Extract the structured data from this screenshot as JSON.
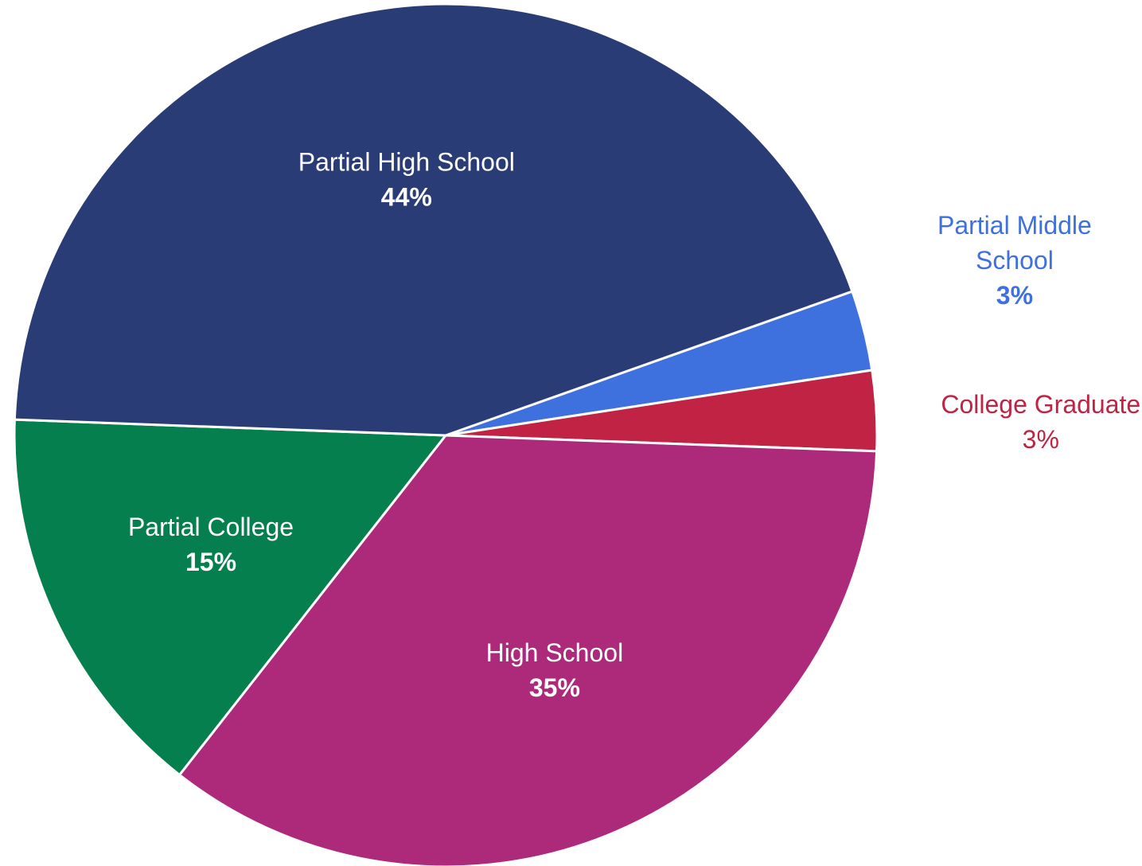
{
  "chart_data": {
    "type": "pie",
    "title": "",
    "slices": [
      {
        "name": "Partial Middle School",
        "label_lines": [
          "Partial Middle",
          "School"
        ],
        "value_label": "3%",
        "value": 3,
        "color": "#3E70DE",
        "label_color": "#3E70DE",
        "pct_bold": true
      },
      {
        "name": "College Graduate",
        "label_lines": [
          "College Graduate"
        ],
        "value_label": "3%",
        "value": 3,
        "color": "#C02343",
        "label_color": "#C02343",
        "pct_bold": false
      },
      {
        "name": "High School",
        "label_lines": [
          "High School"
        ],
        "value_label": "35%",
        "value": 35,
        "color": "#AD2A7A",
        "label_color": "#FFFFFF",
        "pct_bold": true
      },
      {
        "name": "Partial College",
        "label_lines": [
          "Partial College"
        ],
        "value_label": "15%",
        "value": 15,
        "color": "#067F4E",
        "label_color": "#FFFFFF",
        "pct_bold": true
      },
      {
        "name": "Partial High School",
        "label_lines": [
          "Partial High School"
        ],
        "value_label": "44%",
        "value": 44,
        "color": "#2A3C75",
        "label_color": "#FFFFFF",
        "pct_bold": true
      }
    ]
  }
}
